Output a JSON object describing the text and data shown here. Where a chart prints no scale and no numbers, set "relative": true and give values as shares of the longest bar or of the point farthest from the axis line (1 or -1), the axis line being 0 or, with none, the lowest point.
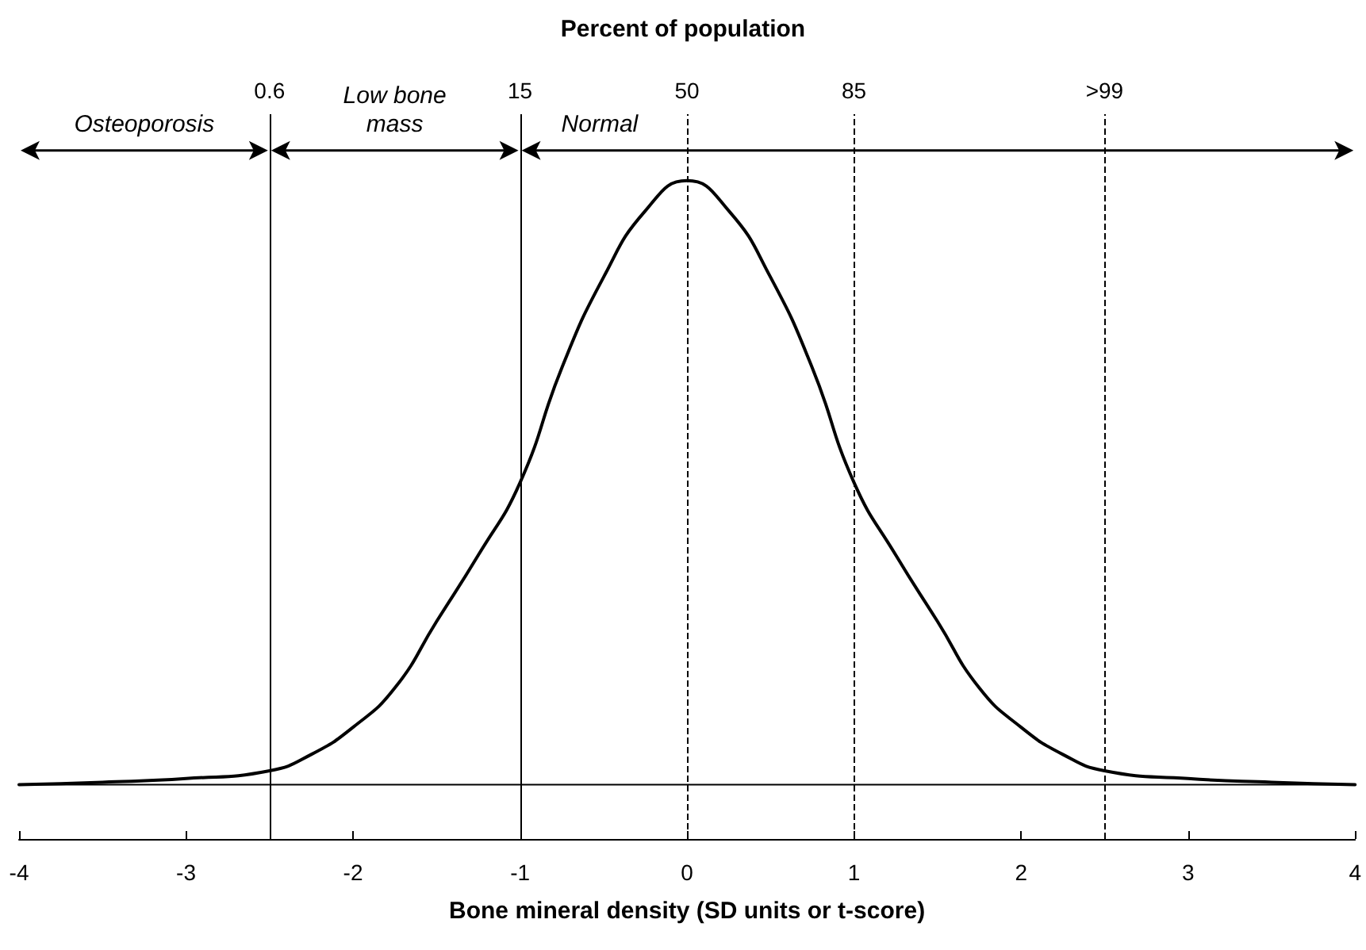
{
  "chart_data": {
    "type": "line",
    "relative": true,
    "title": "Percent of population",
    "xlabel": "Bone mineral density (SD units or t-score)",
    "x": [
      -4,
      -3.5,
      -3,
      -2.5,
      -2.25,
      -2,
      -1.75,
      -1.5,
      -1.25,
      -1,
      -0.75,
      -0.5,
      -0.25,
      0,
      0.25,
      0.5,
      0.75,
      1,
      1.25,
      1.5,
      1.75,
      2,
      2.25,
      2.5,
      3,
      3.5,
      4
    ],
    "series": [
      {
        "color": "#000000",
        "values": [
          0,
          0.004,
          0.01,
          0.023,
          0.05,
          0.095,
          0.16,
          0.27,
          0.38,
          0.5,
          0.69,
          0.84,
          0.95,
          1,
          0.95,
          0.84,
          0.69,
          0.5,
          0.38,
          0.27,
          0.16,
          0.095,
          0.05,
          0.023,
          0.01,
          0.004,
          0
        ]
      }
    ],
    "xlim": [
      -4,
      4
    ],
    "xticks": [
      -4,
      -3,
      -2,
      -1,
      0,
      1,
      2,
      3,
      4
    ],
    "ref_lines": [
      {
        "axis": "x",
        "value": -2.5,
        "line_style": "solid",
        "color": "#000000"
      },
      {
        "axis": "x",
        "value": -1,
        "line_style": "solid",
        "color": "#000000"
      },
      {
        "axis": "x",
        "value": 0,
        "line_style": "dashed",
        "color": "#000000"
      },
      {
        "axis": "x",
        "value": 1,
        "line_style": "dashed",
        "color": "#000000"
      },
      {
        "axis": "x",
        "value": 2.5,
        "line_style": "dashed",
        "color": "#000000"
      }
    ],
    "annotations": [
      "Osteoporosis",
      "Low bone\nmass",
      "Normal",
      "0.6",
      "15",
      "50",
      "85",
      ">99"
    ],
    "grid": false,
    "marker": "none",
    "line_style": "solid",
    "tick_labels": "x"
  }
}
